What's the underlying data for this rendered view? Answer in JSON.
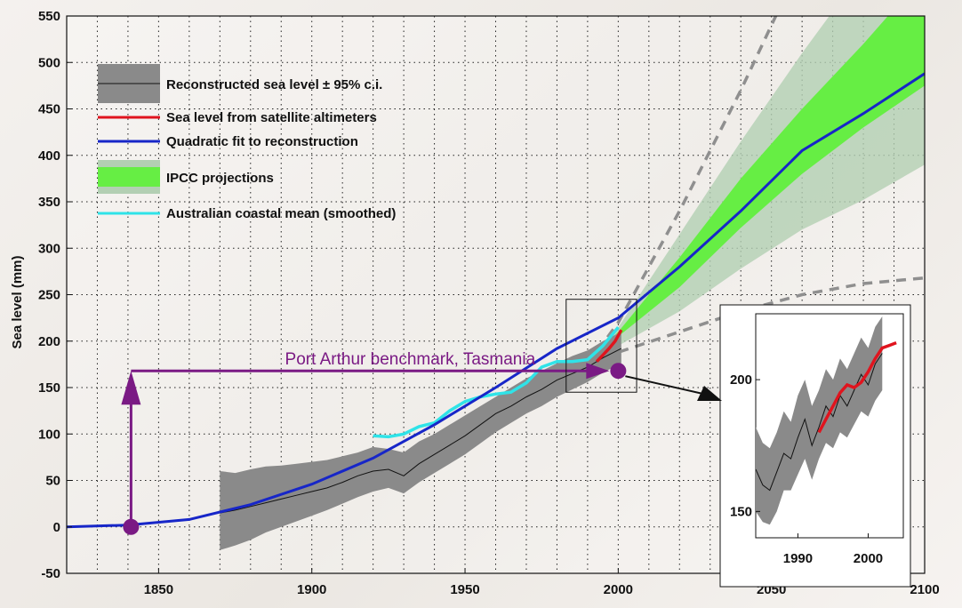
{
  "chart_data": {
    "type": "line",
    "title": "",
    "xlabel": "",
    "ylabel": "Sea level (mm)",
    "xlim": [
      1820,
      2100
    ],
    "ylim": [
      -50,
      550
    ],
    "xticks": [
      1850,
      1900,
      1950,
      2000,
      2050,
      2100
    ],
    "yticks": [
      -50,
      0,
      50,
      100,
      150,
      200,
      250,
      300,
      350,
      400,
      450,
      500,
      550
    ],
    "grid": true,
    "legend_position": "top-left",
    "legend": [
      {
        "label": "Reconstructed sea level ± 95% c.i.",
        "symbol": "band-with-line",
        "color": "#8a8a8a"
      },
      {
        "label": "Sea level from satellite altimeters",
        "symbol": "line",
        "color": "#e0141e"
      },
      {
        "label": "Quadratic fit to reconstruction",
        "symbol": "line",
        "color": "#1726c8"
      },
      {
        "label": "IPCC projections",
        "symbol": "band",
        "color": "#66ee44"
      },
      {
        "label": "Australian coastal mean (smoothed)",
        "symbol": "line",
        "color": "#2fe3e8"
      }
    ],
    "colors": {
      "reconstruction_band": "#8a8a8a",
      "reconstruction_line": "#111111",
      "satellite": "#e0141e",
      "quadratic_fit": "#1726c8",
      "ipcc_inner": "#66ee44",
      "ipcc_outer": "#b3cfb3",
      "ipcc_dashed": "#8f8f8f",
      "australian": "#2fe3e8",
      "annotation": "#7a1a84"
    },
    "series": [
      {
        "name": "Reconstructed sea level ± 95% c.i.",
        "x": [
          1870,
          1875,
          1880,
          1885,
          1890,
          1895,
          1900,
          1905,
          1910,
          1915,
          1920,
          1925,
          1930,
          1935,
          1940,
          1945,
          1950,
          1955,
          1960,
          1965,
          1970,
          1975,
          1980,
          1985,
          1990,
          1995,
          2001
        ],
        "y": [
          15,
          18,
          22,
          26,
          30,
          34,
          38,
          42,
          48,
          55,
          60,
          62,
          55,
          68,
          78,
          88,
          98,
          110,
          122,
          130,
          140,
          148,
          158,
          165,
          172,
          182,
          192
        ],
        "lower": [
          -25,
          -20,
          -14,
          -6,
          0,
          6,
          12,
          18,
          25,
          32,
          38,
          42,
          36,
          48,
          58,
          68,
          78,
          90,
          102,
          112,
          122,
          130,
          140,
          148,
          156,
          166,
          176
        ],
        "upper": [
          60,
          58,
          62,
          65,
          66,
          68,
          70,
          72,
          76,
          80,
          86,
          84,
          80,
          92,
          100,
          110,
          120,
          130,
          140,
          150,
          160,
          168,
          176,
          184,
          190,
          200,
          210
        ]
      },
      {
        "name": "Sea level from satellite altimeters",
        "x": [
          1993,
          1995,
          1997,
          1999,
          2001
        ],
        "y": [
          178,
          185,
          192,
          200,
          212
        ]
      },
      {
        "name": "Quadratic fit to reconstruction",
        "x": [
          1820,
          1840,
          1860,
          1880,
          1900,
          1920,
          1940,
          1960,
          1980,
          2000,
          2020,
          2040,
          2060,
          2080,
          2100
        ],
        "y": [
          0,
          2,
          8,
          24,
          46,
          74,
          110,
          150,
          192,
          225,
          280,
          340,
          405,
          445,
          488
        ]
      },
      {
        "name": "IPCC projections",
        "x": [
          1990,
          2000,
          2020,
          2040,
          2060,
          2080,
          2100
        ],
        "lower": [
          175,
          205,
          258,
          322,
          380,
          430,
          475
        ],
        "upper": [
          175,
          210,
          290,
          375,
          450,
          520,
          595
        ],
        "outer_lower": [
          175,
          195,
          232,
          278,
          320,
          352,
          390
        ],
        "outer_upper": [
          175,
          215,
          315,
          415,
          510,
          600,
          700
        ],
        "dashed_upper": [
          175,
          220,
          340,
          470,
          610,
          760,
          900
        ],
        "dashed_lower": [
          175,
          188,
          210,
          232,
          250,
          262,
          268
        ]
      },
      {
        "name": "Australian coastal mean (smoothed)",
        "x": [
          1920,
          1925,
          1930,
          1935,
          1940,
          1945,
          1950,
          1955,
          1960,
          1965,
          1970,
          1975,
          1980,
          1985,
          1990,
          1995,
          2000
        ],
        "y": [
          98,
          97,
          100,
          108,
          112,
          125,
          135,
          140,
          143,
          145,
          155,
          172,
          178,
          178,
          180,
          195,
          215
        ]
      }
    ],
    "annotations": [
      {
        "text": "Port Arthur benchmark, Tasmania",
        "from": [
          1841,
          0
        ],
        "to": [
          2000,
          168
        ]
      }
    ],
    "inset": {
      "xlim": [
        1984,
        2005
      ],
      "ylim": [
        140,
        225
      ],
      "xticks": [
        1990,
        2000
      ],
      "yticks": [
        150,
        200
      ],
      "reconstruction": {
        "x": [
          1984,
          1985,
          1986,
          1987,
          1988,
          1989,
          1990,
          1991,
          1992,
          1993,
          1994,
          1995,
          1996,
          1997,
          1998,
          1999,
          2000,
          2001,
          2002
        ],
        "y": [
          166,
          160,
          158,
          165,
          172,
          170,
          178,
          185,
          175,
          182,
          190,
          186,
          194,
          190,
          196,
          202,
          198,
          206,
          210
        ],
        "lower": [
          150,
          146,
          145,
          150,
          158,
          158,
          164,
          170,
          162,
          170,
          176,
          174,
          180,
          178,
          183,
          188,
          186,
          192,
          196
        ],
        "upper": [
          182,
          176,
          174,
          180,
          188,
          184,
          194,
          200,
          190,
          196,
          204,
          200,
          208,
          204,
          210,
          216,
          212,
          220,
          224
        ]
      },
      "satellite": {
        "x": [
          1993,
          1994,
          1995,
          1996,
          1997,
          1998,
          1999,
          2000,
          2001,
          2002,
          2003,
          2004
        ],
        "y": [
          180,
          185,
          190,
          195,
          198,
          197,
          199,
          203,
          208,
          212,
          213,
          214
        ]
      }
    }
  }
}
